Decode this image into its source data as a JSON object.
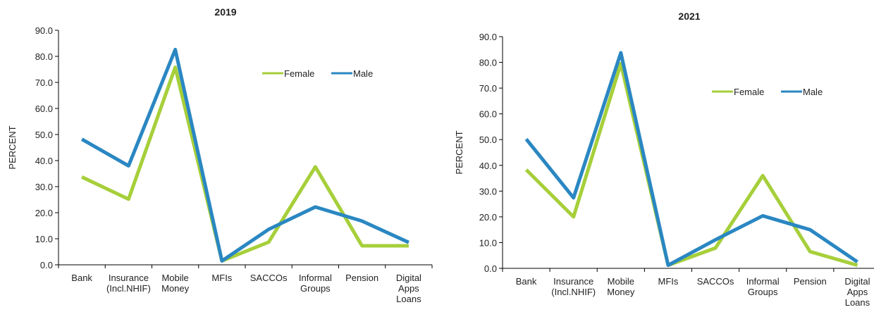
{
  "chart_data": [
    {
      "type": "line",
      "title": "2019",
      "y_label": "PERCENT",
      "categories": [
        "Bank",
        "Insurance (Incl.NHIF)",
        "Mobile Money",
        "MFIs",
        "SACCOs",
        "Informal Groups",
        "Pension",
        "Digital Apps Loans"
      ],
      "series": [
        {
          "name": "Female",
          "color": "#a6cf3a",
          "values": [
            33.7,
            25.2,
            75.8,
            1.5,
            8.7,
            37.6,
            7.3,
            7.3
          ]
        },
        {
          "name": "Male",
          "color": "#2a87c2",
          "values": [
            48.2,
            38.0,
            82.6,
            1.5,
            13.6,
            22.2,
            16.8,
            8.6
          ]
        }
      ],
      "ylim": [
        0,
        90
      ],
      "yticks": [
        {
          "value": 0,
          "label": "0.0"
        },
        {
          "value": 10,
          "label": "10.0"
        },
        {
          "value": 20,
          "label": "20.0"
        },
        {
          "value": 30,
          "label": "30.0"
        },
        {
          "value": 40,
          "label": "40.0"
        },
        {
          "value": 50,
          "label": "50.0"
        },
        {
          "value": 60,
          "label": "60.0"
        },
        {
          "value": 70,
          "label": "70.0"
        },
        {
          "value": 80,
          "label": "80.0"
        },
        {
          "value": 90,
          "label": "90.0"
        }
      ]
    },
    {
      "type": "line",
      "title": "2021",
      "y_label": "PERCENT",
      "categories": [
        "Bank",
        "Insurance (Incl.NHIF)",
        "Mobile Money",
        "MFIs",
        "SACCOs",
        "Informal Groups",
        "Pension",
        "Digital Apps Loans"
      ],
      "series": [
        {
          "name": "Female",
          "color": "#a6cf3a",
          "values": [
            38.3,
            20.0,
            79.5,
            1.2,
            7.9,
            36.0,
            6.5,
            1.2
          ]
        },
        {
          "name": "Male",
          "color": "#2a87c2",
          "values": [
            50.2,
            27.4,
            83.7,
            1.2,
            11.1,
            20.4,
            15.0,
            2.5
          ]
        }
      ],
      "ylim": [
        0,
        90
      ],
      "yticks": [
        {
          "value": 0,
          "label": "0.0"
        },
        {
          "value": 10,
          "label": "10.0"
        },
        {
          "value": 20,
          "label": "20.0"
        },
        {
          "value": 30,
          "label": "30.0"
        },
        {
          "value": 40,
          "label": "40.0"
        },
        {
          "value": 50,
          "label": "50.0"
        },
        {
          "value": 60,
          "label": "60.0"
        },
        {
          "value": 70,
          "label": "70.0"
        },
        {
          "value": 80,
          "label": "80.0"
        },
        {
          "value": 90,
          "label": "90.0"
        }
      ]
    }
  ]
}
